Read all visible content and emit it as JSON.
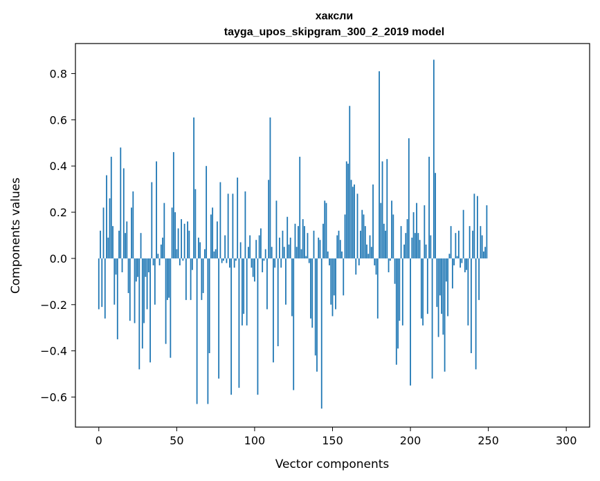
{
  "chart_data": {
    "type": "bar",
    "title_lines": [
      "хаксли",
      "tayga_upos_skipgram_300_2_2019 model"
    ],
    "xlabel": "Vector components",
    "ylabel": "Components values",
    "xlim": [
      -15,
      315
    ],
    "ylim": [
      -0.73,
      0.93
    ],
    "xticks": [
      0,
      50,
      100,
      150,
      200,
      250,
      300
    ],
    "xtick_labels": [
      "0",
      "50",
      "100",
      "150",
      "200",
      "250",
      "300"
    ],
    "yticks": [
      -0.6,
      -0.4,
      -0.2,
      0.0,
      0.2,
      0.4,
      0.6,
      0.8
    ],
    "ytick_labels": [
      "−0.6",
      "−0.4",
      "−0.2",
      "0.0",
      "0.2",
      "0.4",
      "0.6",
      "0.8"
    ],
    "grid": false,
    "bar_color": "#1f77b4",
    "x_start": 0,
    "values": [
      -0.22,
      0.12,
      -0.21,
      0.22,
      -0.26,
      0.36,
      0.09,
      0.26,
      0.44,
      0.14,
      -0.2,
      -0.07,
      -0.35,
      0.12,
      0.48,
      -0.06,
      0.39,
      0.11,
      0.16,
      -0.15,
      -0.27,
      0.22,
      0.29,
      -0.28,
      -0.1,
      -0.08,
      -0.48,
      0.11,
      -0.39,
      -0.28,
      -0.08,
      -0.22,
      -0.06,
      -0.45,
      0.33,
      -0.03,
      -0.2,
      0.42,
      0.02,
      -0.03,
      0.06,
      0.09,
      0.24,
      -0.37,
      -0.18,
      -0.17,
      -0.43,
      0.22,
      0.46,
      0.2,
      0.04,
      0.13,
      -0.03,
      0.17,
      -0.01,
      0.15,
      -0.18,
      0.16,
      0.12,
      -0.18,
      -0.05,
      0.61,
      0.3,
      -0.63,
      0.09,
      0.07,
      -0.18,
      -0.15,
      0.04,
      0.4,
      -0.63,
      -0.41,
      0.19,
      0.22,
      0.03,
      0.04,
      0.16,
      -0.52,
      0.33,
      -0.02,
      -0.01,
      0.1,
      -0.02,
      0.28,
      -0.04,
      -0.59,
      0.28,
      -0.04,
      -0.01,
      0.35,
      -0.56,
      0.07,
      -0.29,
      -0.24,
      0.29,
      -0.29,
      0.05,
      0.1,
      -0.04,
      -0.08,
      -0.1,
      0.08,
      -0.59,
      0.1,
      0.13,
      -0.06,
      -0.01,
      0.04,
      -0.22,
      0.34,
      0.61,
      0.05,
      -0.45,
      -0.04,
      0.25,
      -0.38,
      0.09,
      -0.04,
      0.12,
      0.05,
      -0.2,
      0.18,
      0.06,
      0.09,
      -0.25,
      -0.57,
      0.15,
      0.05,
      0.14,
      0.44,
      0.04,
      0.17,
      0.14,
      0.01,
      0.11,
      -0.02,
      -0.26,
      -0.3,
      0.12,
      -0.42,
      -0.49,
      0.09,
      0.08,
      -0.65,
      0.15,
      0.25,
      0.24,
      0.03,
      -0.03,
      -0.2,
      -0.25,
      -0.16,
      -0.22,
      0.1,
      0.12,
      0.08,
      0.03,
      -0.16,
      0.19,
      0.42,
      0.41,
      0.66,
      0.34,
      0.31,
      0.32,
      -0.07,
      0.28,
      -0.03,
      0.12,
      0.21,
      0.19,
      0.14,
      0.06,
      0.02,
      0.1,
      0.05,
      0.32,
      -0.03,
      -0.07,
      -0.26,
      0.81,
      0.24,
      0.42,
      0.15,
      0.12,
      0.43,
      -0.06,
      -0.01,
      0.25,
      0.19,
      -0.11,
      -0.46,
      -0.39,
      -0.27,
      0.14,
      -0.29,
      0.06,
      0.11,
      0.17,
      0.52,
      -0.55,
      0.09,
      0.2,
      0.11,
      0.24,
      0.11,
      0.08,
      -0.26,
      -0.29,
      0.23,
      0.06,
      -0.24,
      0.44,
      0.1,
      -0.52,
      0.86,
      0.37,
      -0.21,
      -0.34,
      -0.16,
      -0.24,
      -0.33,
      -0.49,
      -0.1,
      -0.25,
      0.02,
      0.14,
      -0.13,
      -0.03,
      0.11,
      0.01,
      0.12,
      -0.04,
      -0.02,
      0.21,
      -0.06,
      -0.05,
      -0.29,
      0.14,
      -0.41,
      0.12,
      0.28,
      -0.48,
      0.27,
      -0.18,
      0.14,
      0.1,
      0.03,
      0.05,
      0.23
    ]
  }
}
